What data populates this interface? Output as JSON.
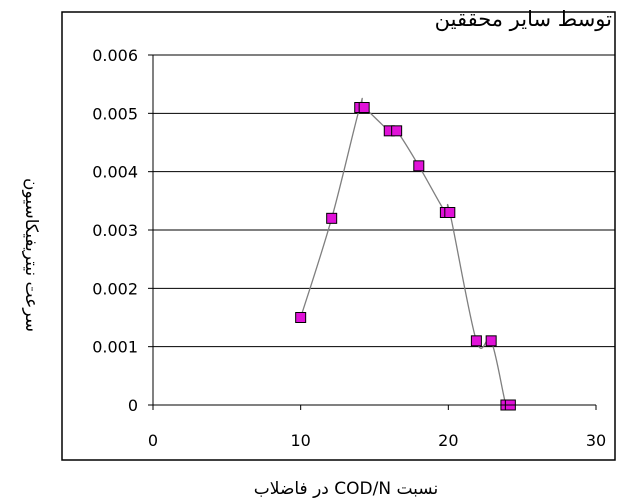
{
  "chart_data": {
    "type": "scatter",
    "title": "توسط سایر محققین",
    "xlabel": "نسبت COD/N در فاضلاب",
    "ylabel": "سرعت نیتریفیکاسیون",
    "xlim": [
      0,
      30
    ],
    "ylim": [
      0,
      0.006
    ],
    "x_ticks": [
      "0",
      "10",
      "20",
      "30"
    ],
    "y_ticks": [
      "0",
      "0.001",
      "0.002",
      "0.003",
      "0.004",
      "0.005",
      "0.006"
    ],
    "grid": true,
    "legend": "none",
    "marker_color": "#e012d8",
    "line_color": "#7f7f7f",
    "x": [
      10,
      12.1,
      14,
      14.3,
      16,
      16.5,
      18,
      19.8,
      20.1,
      21.9,
      22.9,
      23.9,
      24.2
    ],
    "y": [
      0.0015,
      0.0032,
      0.0051,
      0.0051,
      0.0047,
      0.0047,
      0.0041,
      0.0033,
      0.0033,
      0.0011,
      0.0011,
      0.0,
      0.0
    ]
  }
}
